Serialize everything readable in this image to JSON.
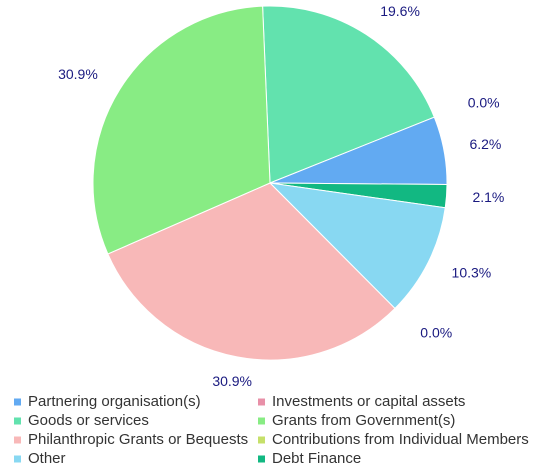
{
  "chart_data": {
    "type": "pie",
    "categories": [
      "Partnering organisation(s)",
      "Investments or capital assets",
      "Goods or services",
      "Grants from Government(s)",
      "Philanthropic Grants or Bequests",
      "Contributions from Individual Members",
      "Other",
      "Debt Finance"
    ],
    "values": [
      6.2,
      0.0,
      19.6,
      30.9,
      30.9,
      0.0,
      10.3,
      2.1
    ],
    "value_labels": [
      "6.2%",
      "0.0%",
      "19.6%",
      "30.9%",
      "30.9%",
      "0.0%",
      "10.3%",
      "2.1%"
    ],
    "colors": [
      "#62aaf2",
      "#e890a8",
      "#62e2ae",
      "#88ec84",
      "#f8b8b8",
      "#c6e06a",
      "#88d8f2",
      "#12b882"
    ],
    "legend": "bottom"
  }
}
